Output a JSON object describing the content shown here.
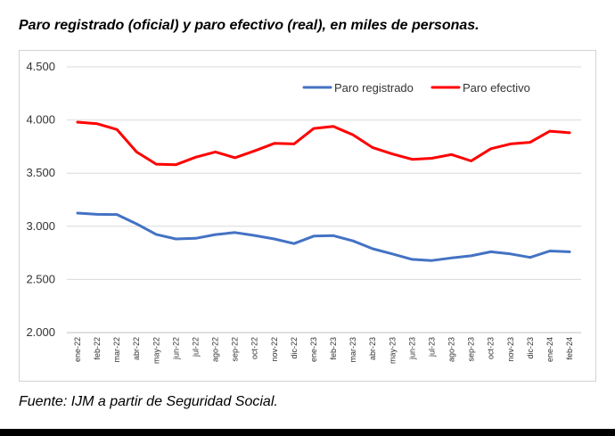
{
  "title": "Paro registrado (oficial) y paro efectivo (real), en miles de personas.",
  "source": "Fuente: IJM a partir de Seguridad Social.",
  "chart_data": {
    "type": "line",
    "title": "Paro registrado (oficial) y paro efectivo (real), en miles de personas.",
    "xlabel": "",
    "ylabel": "",
    "ylim": [
      2000,
      4500
    ],
    "yticks": [
      2000,
      2500,
      3000,
      3500,
      4000,
      4500
    ],
    "ytick_labels": [
      "2.000",
      "2.500",
      "3.000",
      "3.500",
      "4.000",
      "4.500"
    ],
    "grid": true,
    "legend_position": "top-right",
    "categories": [
      "ene-22",
      "feb-22",
      "mar-22",
      "abr-22",
      "may-22",
      "jun-22",
      "jul-22",
      "ago-22",
      "sep-22",
      "oct-22",
      "nov-22",
      "dic-22",
      "ene-23",
      "feb-23",
      "mar-23",
      "abr-23",
      "may-23",
      "jun-23",
      "jul-23",
      "ago-23",
      "sep-23",
      "oct-23",
      "nov-23",
      "dic-23",
      "ene-24",
      "feb-24"
    ],
    "series": [
      {
        "name": "Paro registrado",
        "color": "#4472C4",
        "values": [
          3124,
          3112,
          3111,
          3023,
          2924,
          2881,
          2887,
          2922,
          2941,
          2914,
          2881,
          2837,
          2908,
          2912,
          2862,
          2789,
          2740,
          2689,
          2678,
          2702,
          2722,
          2760,
          2740,
          2707,
          2768,
          2760
        ]
      },
      {
        "name": "Paro efectivo",
        "color": "#FF0000",
        "values": [
          3980,
          3965,
          3910,
          3700,
          3585,
          3580,
          3650,
          3700,
          3645,
          3710,
          3780,
          3775,
          3920,
          3940,
          3860,
          3740,
          3680,
          3630,
          3640,
          3675,
          3615,
          3730,
          3775,
          3790,
          3895,
          3880
        ]
      }
    ]
  }
}
